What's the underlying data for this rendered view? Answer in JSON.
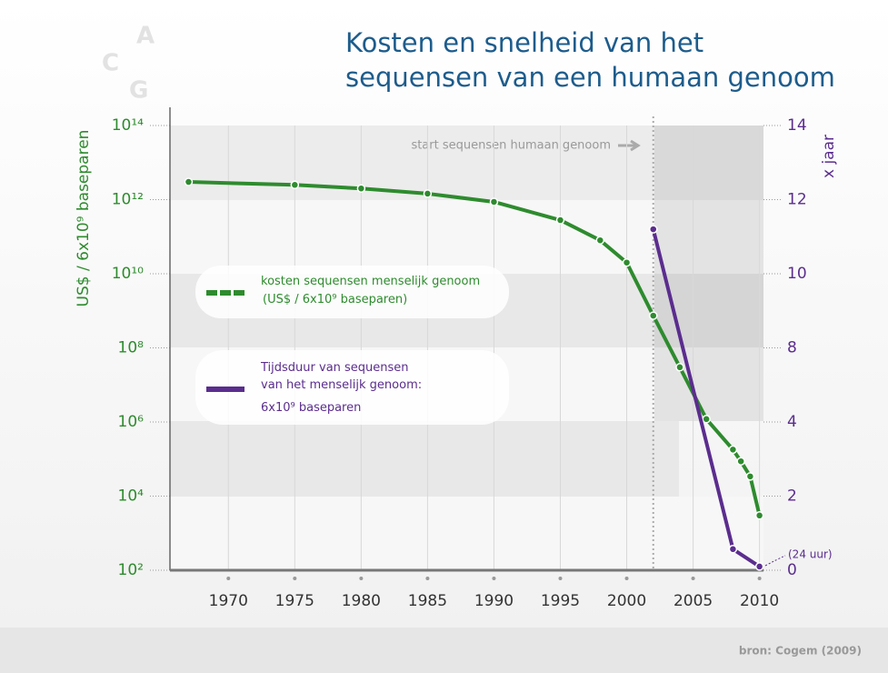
{
  "background_letters": [
    "A",
    "C",
    "G"
  ],
  "chart_data": {
    "type": "line",
    "title": "Kosten en snelheid van het sequensen van een humaan genoom",
    "y_label": "US$ / 6x10⁹ baseparen",
    "y2_label": "x jaar",
    "source": "bron: Cogem (2009)",
    "xlim": [
      1965.6,
      2010.3
    ],
    "xticks": [
      1970,
      1975,
      1980,
      1985,
      1990,
      1995,
      2000,
      2005,
      2010
    ],
    "ylim": [
      100.0,
      100000000000000.0
    ],
    "y_log": true,
    "yticks": [
      {
        "value": 100.0,
        "label": "10²"
      },
      {
        "value": 10000.0,
        "label": "10⁴"
      },
      {
        "value": 1000000.0,
        "label": "10⁶"
      },
      {
        "value": 100000000.0,
        "label": "10⁸"
      },
      {
        "value": 10000000000.0,
        "label": "10¹⁰"
      },
      {
        "value": 1000000000000.0,
        "label": "10¹²"
      },
      {
        "value": 100000000000000.0,
        "label": "10¹⁴"
      }
    ],
    "y2lim": [
      0,
      14
    ],
    "y2ticks": [
      0,
      2,
      4,
      8,
      10,
      12,
      14
    ],
    "annotations": [
      {
        "text": "start sequensen humaan genoom",
        "x": 2002
      },
      {
        "text": "(24 uur)"
      }
    ],
    "series": [
      {
        "name": "kosten sequensen menselijk genoom",
        "legend_note": "(US$ / 6x10⁹ baseparen)",
        "color": "#2e8b2e",
        "x": [
          1967,
          1975,
          1980,
          1985,
          1990,
          1995,
          1998,
          2000,
          2002,
          2004,
          2006,
          2008,
          2008.6,
          2009.3,
          2010
        ],
        "values": [
          3000000000000.0,
          2500000000000.0,
          2000000000000.0,
          1450000000000.0,
          870000000000.0,
          280000000000.0,
          80000000000.0,
          20000000000.0,
          740000000.0,
          30000000.0,
          1200000.0,
          180000.0,
          87000.0,
          34000.0,
          3000.0
        ]
      },
      {
        "name": "Tijdsduur van sequensen van het menselijk genoom:",
        "legend_note": "6x10⁹ baseparen",
        "color": "#5b2d8e",
        "axis": "y2",
        "x": [
          2002,
          2008,
          2010
        ],
        "values": [
          11.2,
          0.57,
          0.1
        ]
      }
    ]
  }
}
